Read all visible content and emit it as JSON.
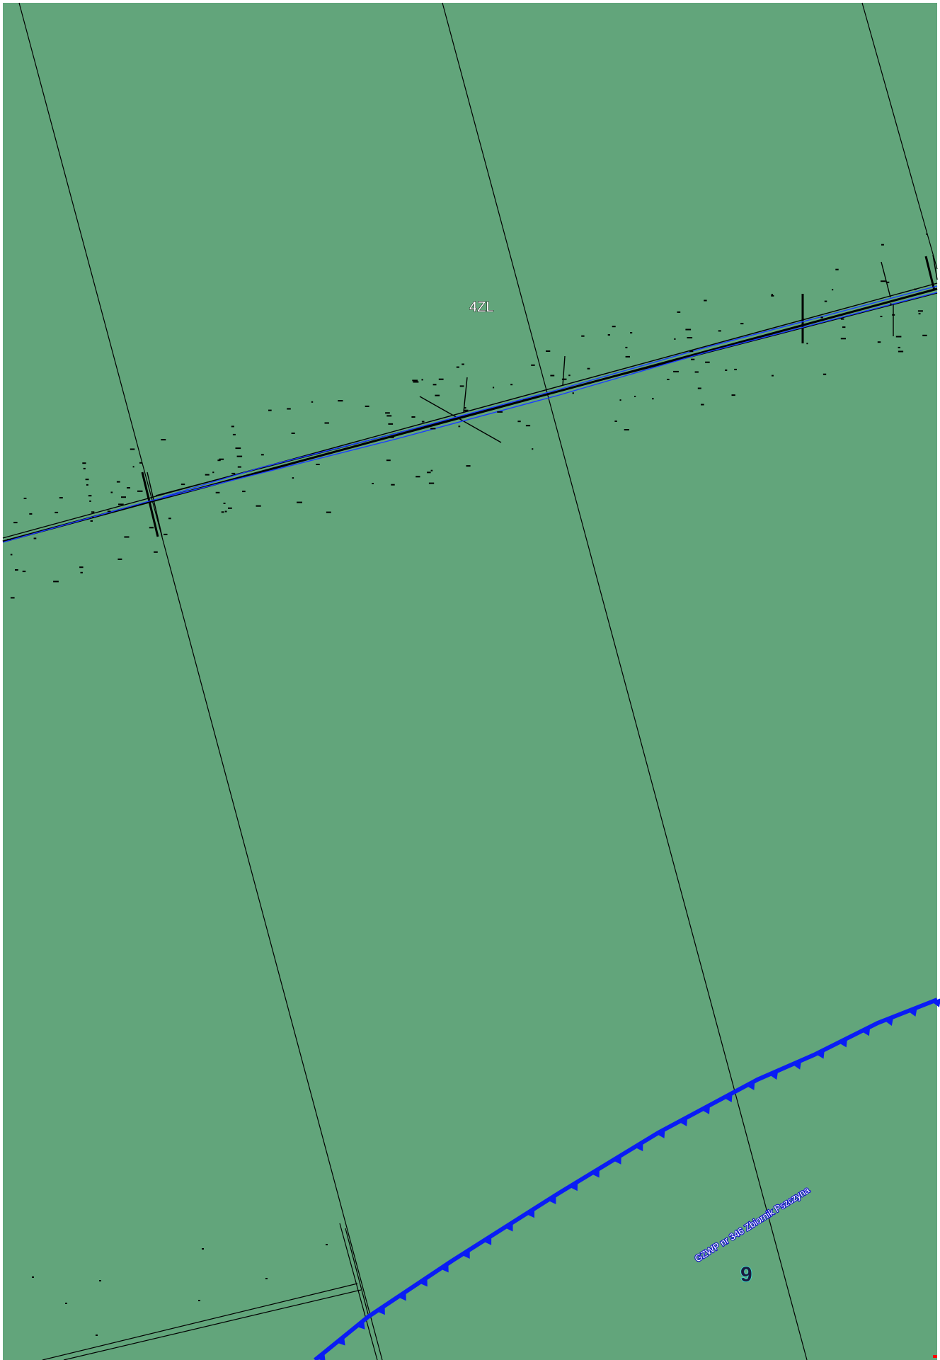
{
  "map": {
    "background_color": "#62a57b",
    "frame_color": "#ffffff",
    "labels": {
      "parcel_label": "4ZL",
      "aquifer_label": "GZWP nr 346 Zbiornik Pszczyna",
      "number_label": "9"
    },
    "colors": {
      "parcel_lines": "#000000",
      "water_line": "#1a3cff",
      "boundary": "#0a1cf5",
      "number_label_outline": "#3ee6d8"
    },
    "layers": [
      "parcel-boundaries",
      "road-corridor",
      "watercourse",
      "aquifer-boundary"
    ]
  }
}
